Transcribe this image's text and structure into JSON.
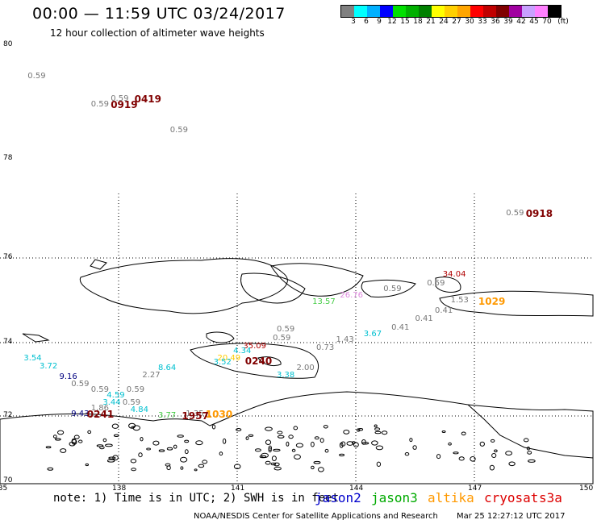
{
  "header": {
    "title": "00:00 — 11:59 UTC 03/24/2017",
    "subtitle": "12 hour collection of altimeter wave heights"
  },
  "colorbar": {
    "colors": [
      "#808080",
      "#00ffff",
      "#00b0ff",
      "#0000ff",
      "#00e000",
      "#00b000",
      "#008000",
      "#ffff00",
      "#ffd000",
      "#ffa500",
      "#ff0000",
      "#c00000",
      "#800000",
      "#a000a0",
      "#c8a0ff",
      "#ff80ff",
      "#000000"
    ],
    "ticks": [
      "3",
      "6",
      "9",
      "12",
      "15",
      "18",
      "21",
      "24",
      "27",
      "30",
      "33",
      "36",
      "39",
      "42",
      "45",
      "70",
      "(ft)"
    ]
  },
  "axes": {
    "lat_labels": [
      "80",
      "78",
      "76",
      "74",
      "72",
      "70"
    ],
    "lon_labels": [
      "135",
      "138",
      "141",
      "144",
      "147",
      "150"
    ]
  },
  "satellites": [
    {
      "name": "jason2",
      "color": "#0000cc"
    },
    {
      "name": "jason3",
      "color": "#00aa00"
    },
    {
      "name": "altika",
      "color": "#ff9900"
    },
    {
      "name": "cryosat",
      "color": "#dd0000"
    },
    {
      "name": "s3a",
      "color": "#dd0000"
    }
  ],
  "observations": [
    {
      "text": "0.59",
      "color": "#777777",
      "lon": 135.7,
      "lat": 79.45
    },
    {
      "text": "0.59",
      "color": "#777777",
      "lon": 137.8,
      "lat": 79.05
    },
    {
      "text": "0.59",
      "color": "#777777",
      "lon": 137.3,
      "lat": 78.95
    },
    {
      "text": "0.59",
      "color": "#777777",
      "lon": 139.3,
      "lat": 78.5
    },
    {
      "text": "0.59",
      "color": "#777777",
      "lon": 147.8,
      "lat": 76.9
    },
    {
      "text": "34.04",
      "color": "#b00000",
      "lon": 146.2,
      "lat": 75.6
    },
    {
      "text": "0.59",
      "color": "#777777",
      "lon": 145.8,
      "lat": 75.4
    },
    {
      "text": "0.59",
      "color": "#777777",
      "lon": 144.7,
      "lat": 75.25
    },
    {
      "text": "26.76",
      "color": "#dd88dd",
      "lon": 143.6,
      "lat": 75.1
    },
    {
      "text": "1.53",
      "color": "#777777",
      "lon": 146.4,
      "lat": 75.0
    },
    {
      "text": "13.57",
      "color": "#44cc44",
      "lon": 142.9,
      "lat": 74.95
    },
    {
      "text": "0.41",
      "color": "#777777",
      "lon": 146.0,
      "lat": 74.75
    },
    {
      "text": "0.41",
      "color": "#777777",
      "lon": 145.5,
      "lat": 74.55
    },
    {
      "text": "0.41",
      "color": "#777777",
      "lon": 144.9,
      "lat": 74.35
    },
    {
      "text": "3.67",
      "color": "#00c0d0",
      "lon": 144.2,
      "lat": 74.2
    },
    {
      "text": "0.59",
      "color": "#777777",
      "lon": 142.0,
      "lat": 74.3
    },
    {
      "text": "1.43",
      "color": "#777777",
      "lon": 143.5,
      "lat": 74.05
    },
    {
      "text": "0.59",
      "color": "#777777",
      "lon": 141.9,
      "lat": 74.1
    },
    {
      "text": "0.73",
      "color": "#777777",
      "lon": 143.0,
      "lat": 73.85
    },
    {
      "text": "35.09",
      "color": "#b00000",
      "lon": 141.15,
      "lat": 73.9
    },
    {
      "text": "4.34",
      "color": "#00c0d0",
      "lon": 140.9,
      "lat": 73.75
    },
    {
      "text": "20.49",
      "color": "#ffcc00",
      "lon": 140.5,
      "lat": 73.55
    },
    {
      "text": "3.52",
      "color": "#00c0d0",
      "lon": 140.4,
      "lat": 73.45
    },
    {
      "text": "3.54",
      "color": "#00c0d0",
      "lon": 135.6,
      "lat": 73.55
    },
    {
      "text": "3.72",
      "color": "#00c0d0",
      "lon": 136.0,
      "lat": 73.35
    },
    {
      "text": "8.64",
      "color": "#00c0d0",
      "lon": 139.0,
      "lat": 73.3
    },
    {
      "text": "2.00",
      "color": "#777777",
      "lon": 142.5,
      "lat": 73.3
    },
    {
      "text": "9.16",
      "color": "#000080",
      "lon": 136.5,
      "lat": 73.05
    },
    {
      "text": "2.27",
      "color": "#777777",
      "lon": 138.6,
      "lat": 73.1
    },
    {
      "text": "3.38",
      "color": "#00c0d0",
      "lon": 142.0,
      "lat": 73.1
    },
    {
      "text": "0.59",
      "color": "#777777",
      "lon": 136.8,
      "lat": 72.85
    },
    {
      "text": "0.59",
      "color": "#777777",
      "lon": 137.3,
      "lat": 72.7
    },
    {
      "text": "0.59",
      "color": "#777777",
      "lon": 138.2,
      "lat": 72.7
    },
    {
      "text": "4.59",
      "color": "#00c0d0",
      "lon": 137.7,
      "lat": 72.55
    },
    {
      "text": "3.44",
      "color": "#00c0d0",
      "lon": 137.6,
      "lat": 72.35
    },
    {
      "text": "0.59",
      "color": "#777777",
      "lon": 138.1,
      "lat": 72.35
    },
    {
      "text": "1.86",
      "color": "#777777",
      "lon": 137.3,
      "lat": 72.2
    },
    {
      "text": "4.84",
      "color": "#00c0d0",
      "lon": 138.3,
      "lat": 72.15
    },
    {
      "text": "9.43",
      "color": "#000080",
      "lon": 136.8,
      "lat": 72.05
    },
    {
      "text": "3.77",
      "color": "#44cc44",
      "lon": 139.0,
      "lat": 72.0
    },
    {
      "text": "1.35",
      "color": "#777777",
      "lon": 139.7,
      "lat": 72.05
    }
  ],
  "track_ids": [
    {
      "text": "0419",
      "color": "#800000",
      "lon": 138.4,
      "lat": 79.05
    },
    {
      "text": "0919",
      "color": "#800000",
      "lon": 137.8,
      "lat": 78.95
    },
    {
      "text": "0918",
      "color": "#800000",
      "lon": 148.3,
      "lat": 76.9
    },
    {
      "text": "1029",
      "color": "#ff9900",
      "lon": 147.1,
      "lat": 74.97
    },
    {
      "text": "0240",
      "color": "#800000",
      "lon": 141.2,
      "lat": 73.5
    },
    {
      "text": "0241",
      "color": "#800000",
      "lon": 137.2,
      "lat": 72.05
    },
    {
      "text": "1957",
      "color": "#800000",
      "lon": 139.6,
      "lat": 72.0
    },
    {
      "text": "1030",
      "color": "#ff9900",
      "lon": 140.2,
      "lat": 72.05
    }
  ],
  "footer": {
    "note": "note: 1) Time is in UTC; 2) SWH is in feet",
    "credit": "NOAA/NESDIS Center for Satellite Applications and Research",
    "timestamp": "Mar 25 12:27:12 UTC 2017"
  }
}
